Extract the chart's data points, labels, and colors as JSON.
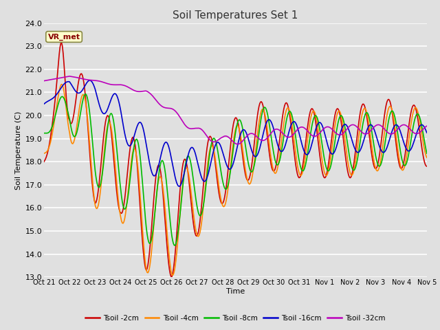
{
  "title": "Soil Temperatures Set 1",
  "xlabel": "Time",
  "ylabel": "Soil Temperature (C)",
  "ylim": [
    13.0,
    24.0
  ],
  "yticks": [
    13.0,
    14.0,
    15.0,
    16.0,
    17.0,
    18.0,
    19.0,
    20.0,
    21.0,
    22.0,
    23.0,
    24.0
  ],
  "bg_color": "#e0e0e0",
  "plot_bg_color": "#e0e0e0",
  "grid_color": "#ffffff",
  "annotation_text": "VR_met",
  "annotation_bg": "#ffffcc",
  "annotation_border": "#888844",
  "series_labels": [
    "Tsoil -2cm",
    "Tsoil -4cm",
    "Tsoil -8cm",
    "Tsoil -16cm",
    "Tsoil -32cm"
  ],
  "series_colors": [
    "#cc0000",
    "#ff8800",
    "#00bb00",
    "#0000cc",
    "#bb00bb"
  ],
  "xtick_labels": [
    "Oct 21",
    "Oct 22",
    "Oct 23",
    "Oct 24",
    "Oct 25",
    "Oct 26",
    "Oct 27",
    "Oct 28",
    "Oct 29",
    "Oct 30",
    "Oct 31",
    "Nov 1",
    "Nov 2",
    "Nov 3",
    "Nov 4",
    "Nov 5"
  ],
  "n_points": 480
}
